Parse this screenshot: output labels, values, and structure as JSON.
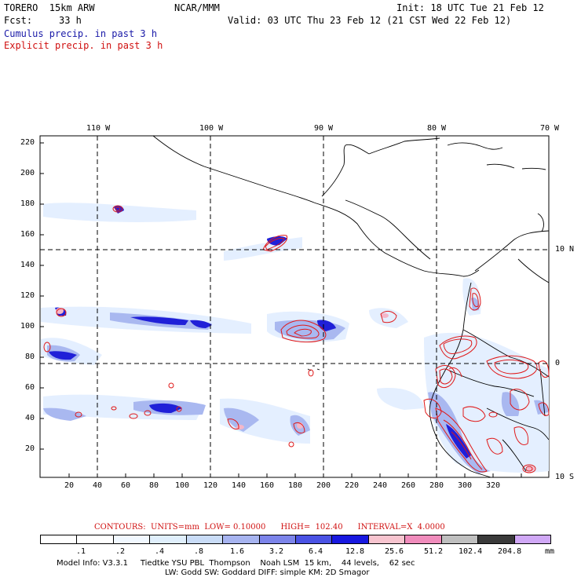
{
  "header": {
    "model": "TORERO  15km ARW",
    "org": "NCAR/MMM",
    "init": "Init: 18 UTC Tue 21 Feb 12",
    "fcst_label": "Fcst:",
    "fcst_value": "33 h",
    "valid": "Valid: 03 UTC Thu 23 Feb 12 (21 CST Wed 22 Feb 12)",
    "legend_cumulus": "Cumulus precip. in past 3 h",
    "legend_explicit": "Explicit precip. in past 3 h"
  },
  "colors": {
    "cumulus_text": "#1a1aa8",
    "explicit_text": "#d01010",
    "explicit_contour": "#e01818"
  },
  "map": {
    "lon_labels": [
      "110 W",
      "100 W",
      "90 W",
      "80 W",
      "70 W"
    ],
    "lat_labels": [
      "10 N",
      "0",
      "10 S"
    ],
    "y_ticks": [
      "220",
      "200",
      "180",
      "160",
      "140",
      "120",
      "100",
      "80",
      "60",
      "40",
      "20"
    ],
    "x_ticks": [
      "20",
      "40",
      "60",
      "80",
      "100",
      "120",
      "140",
      "160",
      "180",
      "200",
      "220",
      "240",
      "260",
      "280",
      "300",
      "320"
    ]
  },
  "contour_info": {
    "text": "CONTOURS:  UNITS=mm  LOW= 0.10000      HIGH=  102.40      INTERVAL=X  4.0000"
  },
  "colorbar": {
    "colors": [
      "#ffffff",
      "#ffffff",
      "#f1f8ff",
      "#e0effc",
      "#c9dcf7",
      "#a7b4f0",
      "#7c84ea",
      "#4a52e4",
      "#1818e0",
      "#f7c4cf",
      "#f08cbc",
      "#bfbfbf",
      "#3a3a3a",
      "#d0a8f6"
    ],
    "labels": [
      ".1",
      ".2",
      ".4",
      ".8",
      "1.6",
      "3.2",
      "6.4",
      "12.8",
      "25.6",
      "51.2",
      "102.4",
      "204.8"
    ],
    "units": "mm"
  },
  "footer": {
    "line1": "Model Info: V3.3.1     Tiedtke YSU PBL  Thompson    Noah LSM  15 km,    44 levels,    62 sec",
    "line2": "LW: Godd SW: Goddard DIFF: simple KM: 2D Smagor"
  }
}
